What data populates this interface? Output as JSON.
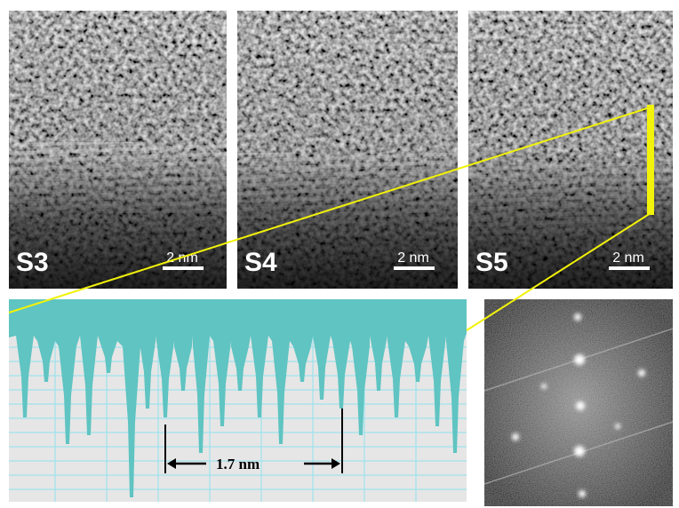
{
  "panels": [
    {
      "label": "S3",
      "scale_bar": "2 nm"
    },
    {
      "label": "S4",
      "scale_bar": "2 nm"
    },
    {
      "label": "S5",
      "scale_bar": "2 nm"
    }
  ],
  "profile": {
    "spacing_label": "1.7 nm"
  }
}
